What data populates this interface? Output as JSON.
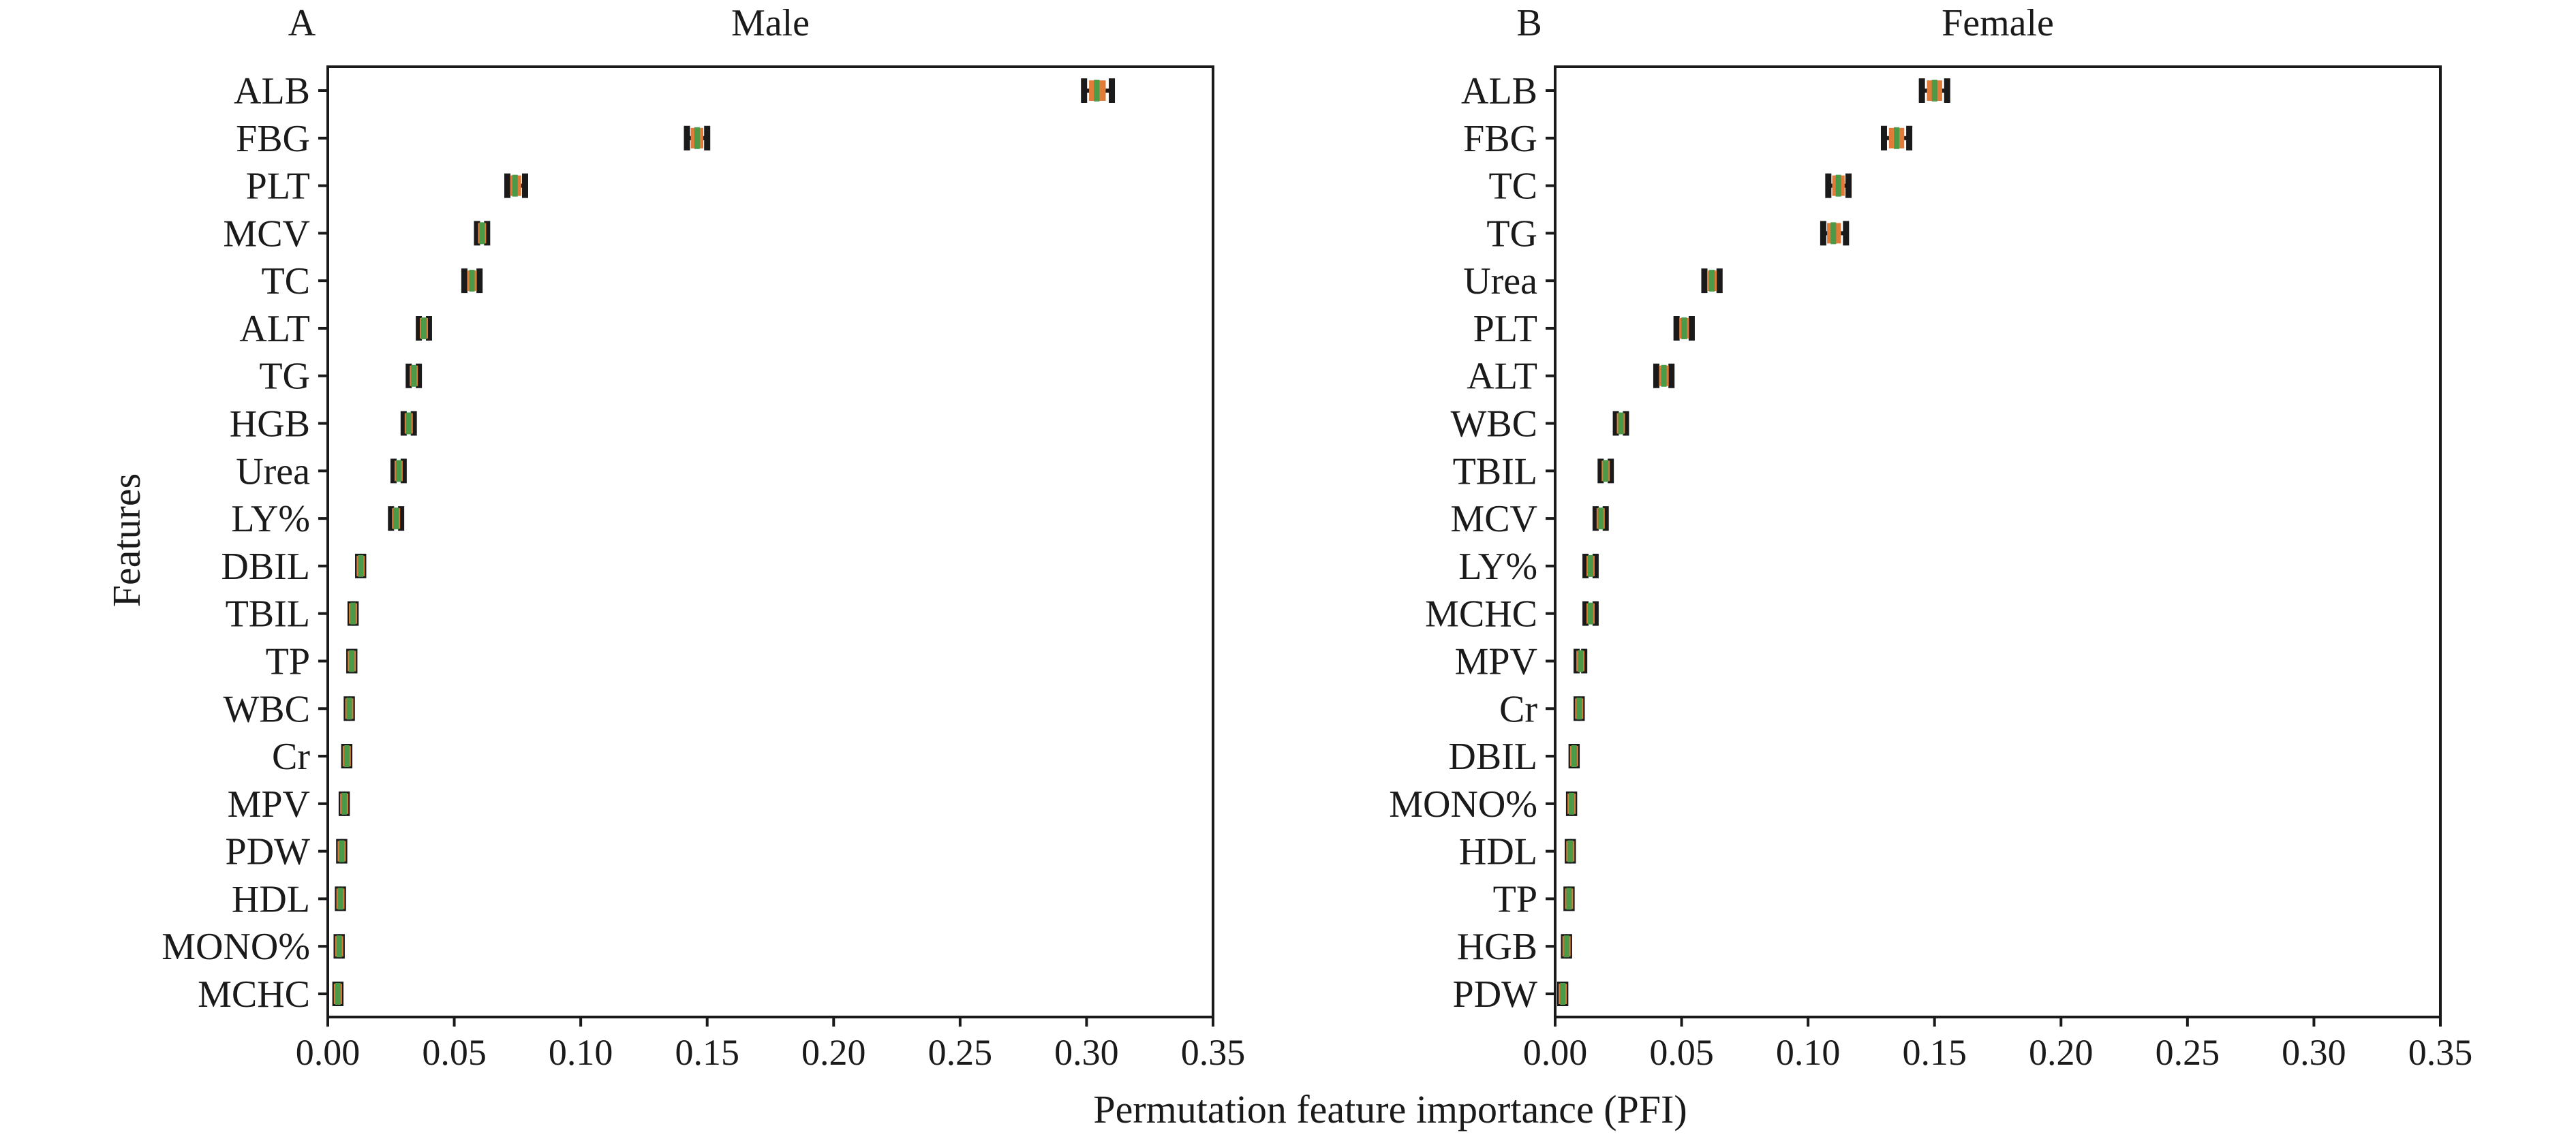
{
  "figure": {
    "xlabel": "Permutation feature importance (PFI)",
    "ylabel": "Features"
  },
  "colors": {
    "whisker": "#1a1a1a",
    "box": "#e07b39",
    "median": "#4a9a48",
    "axis": "#1a1a1a"
  },
  "chart_data": [
    {
      "type": "box",
      "panel": "A",
      "title": "Male",
      "xlim": [
        0,
        0.35
      ],
      "xticks": [
        "0.00",
        "0.05",
        "0.10",
        "0.15",
        "0.20",
        "0.25",
        "0.30",
        "0.35"
      ],
      "features": [
        "ALB",
        "FBG",
        "PLT",
        "MCV",
        "TC",
        "ALT",
        "TG",
        "HGB",
        "Urea",
        "LY%",
        "DBIL",
        "TBIL",
        "TP",
        "WBC",
        "Cr",
        "MPV",
        "PDW",
        "HDL",
        "MONO%",
        "MCHC"
      ],
      "values": [
        0.304,
        0.146,
        0.074,
        0.061,
        0.057,
        0.038,
        0.034,
        0.032,
        0.028,
        0.027,
        0.013,
        0.01,
        0.0095,
        0.0085,
        0.0075,
        0.0065,
        0.0055,
        0.005,
        0.0045,
        0.004
      ],
      "whisker_low": [
        0.299,
        0.142,
        0.071,
        0.059,
        0.054,
        0.036,
        0.032,
        0.03,
        0.026,
        0.025,
        0.012,
        0.009,
        0.0085,
        0.0075,
        0.0065,
        0.0055,
        0.0045,
        0.004,
        0.0035,
        0.003
      ],
      "whisker_high": [
        0.31,
        0.15,
        0.078,
        0.063,
        0.06,
        0.04,
        0.036,
        0.034,
        0.03,
        0.029,
        0.014,
        0.011,
        0.0105,
        0.0095,
        0.0085,
        0.0075,
        0.0065,
        0.006,
        0.0055,
        0.005
      ]
    },
    {
      "type": "box",
      "panel": "B",
      "title": "Female",
      "xlim": [
        0,
        0.35
      ],
      "xticks": [
        "0.00",
        "0.05",
        "0.10",
        "0.15",
        "0.20",
        "0.25",
        "0.30",
        "0.35"
      ],
      "features": [
        "ALB",
        "FBG",
        "TC",
        "TG",
        "Urea",
        "PLT",
        "ALT",
        "WBC",
        "TBIL",
        "MCV",
        "LY%",
        "MCHC",
        "MPV",
        "Cr",
        "DBIL",
        "MONO%",
        "HDL",
        "TP",
        "HGB",
        "PDW"
      ],
      "values": [
        0.15,
        0.135,
        0.112,
        0.11,
        0.062,
        0.051,
        0.043,
        0.026,
        0.02,
        0.018,
        0.014,
        0.014,
        0.01,
        0.0095,
        0.0075,
        0.0065,
        0.006,
        0.0055,
        0.0045,
        0.003
      ],
      "whisker_low": [
        0.145,
        0.13,
        0.108,
        0.106,
        0.059,
        0.048,
        0.04,
        0.024,
        0.018,
        0.016,
        0.012,
        0.012,
        0.0085,
        0.0085,
        0.0065,
        0.0055,
        0.005,
        0.0045,
        0.0035,
        0.002
      ],
      "whisker_high": [
        0.155,
        0.14,
        0.116,
        0.115,
        0.065,
        0.054,
        0.046,
        0.028,
        0.022,
        0.02,
        0.016,
        0.016,
        0.0115,
        0.0105,
        0.0085,
        0.0075,
        0.007,
        0.0065,
        0.0055,
        0.004
      ]
    }
  ]
}
